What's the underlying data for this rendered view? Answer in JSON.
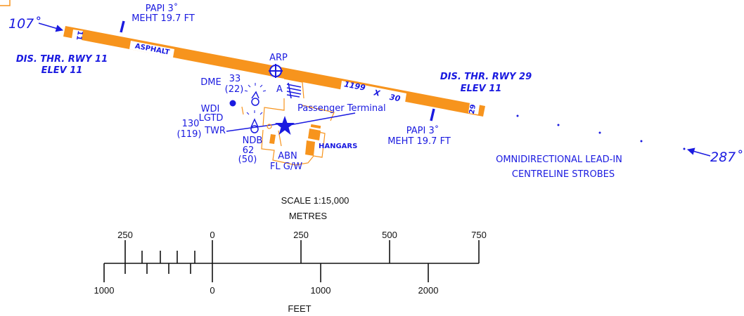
{
  "colors": {
    "runway": "#f7941d",
    "label": "#1a1ae0",
    "scale": "#111111"
  },
  "icons": [
    "arp-icon",
    "airport-beacon-star-icon",
    "ndb-icon",
    "dme-icon",
    "windsock-icon"
  ],
  "runway": {
    "left_number": "11",
    "right_number": "29",
    "surface": "ASPHALT",
    "length": "1199",
    "cross": "X",
    "width": "30"
  },
  "labels": {
    "papi_west": {
      "line1": "PAPI 3˚",
      "line2": "MEHT 19.7 FT"
    },
    "papi_east": {
      "line1": "PAPI 3˚",
      "line2": "MEHT 19.7 FT"
    },
    "dis_thr_11": {
      "line1": "DIS. THR. RWY 11",
      "line2": "ELEV 11"
    },
    "dis_thr_29": {
      "line1": "DIS. THR. RWY 29",
      "line2": "ELEV 11"
    },
    "arp": "ARP",
    "apron": "A",
    "passenger_terminal": "Passenger Terminal",
    "dme": {
      "name": "DME",
      "value": "33",
      "value_paren": "(22)"
    },
    "wdi": {
      "line1": "WDI",
      "line2": "LGTD"
    },
    "twr": {
      "value": "130",
      "value_paren": "(119)",
      "name": "TWR"
    },
    "ndb": {
      "name": "NDB",
      "value": "62",
      "value_paren": "(50)"
    },
    "abn": "ABN",
    "flgw": "FL G/W",
    "hangars": "HANGARS",
    "lead_in": {
      "line1": "OMNIDIRECTIONAL LEAD-IN",
      "line2": "CENTRELINE STROBES"
    },
    "bearing_west": "107˚",
    "bearing_east": "287˚"
  },
  "scale": {
    "ratio": "SCALE 1:15,000",
    "metres_title": "METRES",
    "feet_title": "FEET",
    "metres_ticks": [
      "250",
      "0",
      "250",
      "500",
      "750"
    ],
    "feet_ticks": [
      "1000",
      "0",
      "1000",
      "2000"
    ]
  }
}
